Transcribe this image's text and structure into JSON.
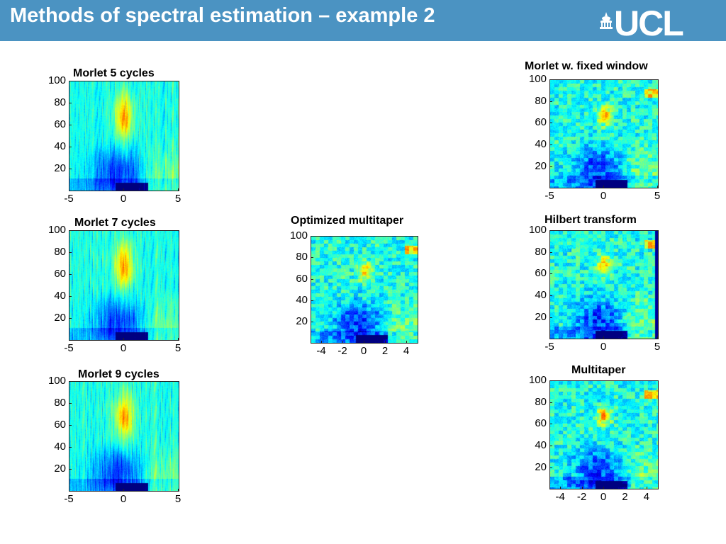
{
  "slide": {
    "title": "Methods of spectral estimation – example 2",
    "logo_text": "UCL",
    "header_color": "#4b93c2"
  },
  "chart_data": [
    {
      "type": "heatmap",
      "title": "Morlet 5 cycles",
      "xticks": [
        "-5",
        "0",
        "5"
      ],
      "yticks": [
        "20",
        "40",
        "60",
        "80",
        "100"
      ],
      "xlim": [
        -5,
        5
      ],
      "ylim": [
        1,
        100
      ],
      "colormap": "jet",
      "texture": "vertical-streaks"
    },
    {
      "type": "heatmap",
      "title": "Morlet 7 cycles",
      "xticks": [
        "-5",
        "0",
        "5"
      ],
      "yticks": [
        "20",
        "40",
        "60",
        "80",
        "100"
      ],
      "xlim": [
        -5,
        5
      ],
      "ylim": [
        1,
        100
      ],
      "colormap": "jet",
      "texture": "vertical-streaks"
    },
    {
      "type": "heatmap",
      "title": "Morlet 9 cycles",
      "xticks": [
        "-5",
        "0",
        "5"
      ],
      "yticks": [
        "20",
        "40",
        "60",
        "80",
        "100"
      ],
      "xlim": [
        -5,
        5
      ],
      "ylim": [
        1,
        100
      ],
      "colormap": "jet",
      "texture": "vertical-streaks"
    },
    {
      "type": "heatmap",
      "title": "Optimized multitaper",
      "xticks": [
        "-4",
        "-2",
        "0",
        "2",
        "4"
      ],
      "yticks": [
        "20",
        "40",
        "60",
        "80",
        "100"
      ],
      "xlim": [
        -5,
        5
      ],
      "ylim": [
        1,
        100
      ],
      "colormap": "jet",
      "texture": "blotchy"
    },
    {
      "type": "heatmap",
      "title": "Morlet w. fixed window",
      "xticks": [
        "-5",
        "0",
        "5"
      ],
      "yticks": [
        "20",
        "40",
        "60",
        "80",
        "100"
      ],
      "xlim": [
        -5,
        5
      ],
      "ylim": [
        1,
        100
      ],
      "colormap": "jet",
      "texture": "blotchy"
    },
    {
      "type": "heatmap",
      "title": "Hilbert transform",
      "xticks": [
        "-5",
        "0",
        "5"
      ],
      "yticks": [
        "20",
        "40",
        "60",
        "80",
        "100"
      ],
      "xlim": [
        -5,
        5
      ],
      "ylim": [
        1,
        100
      ],
      "colormap": "jet",
      "texture": "blotchy"
    },
    {
      "type": "heatmap",
      "title": "Multitaper",
      "xticks": [
        "-4",
        "-2",
        "0",
        "2",
        "4"
      ],
      "yticks": [
        "20",
        "40",
        "60",
        "80",
        "100"
      ],
      "xlim": [
        -5,
        5
      ],
      "ylim": [
        1,
        100
      ],
      "colormap": "jet",
      "texture": "blotchy"
    }
  ]
}
